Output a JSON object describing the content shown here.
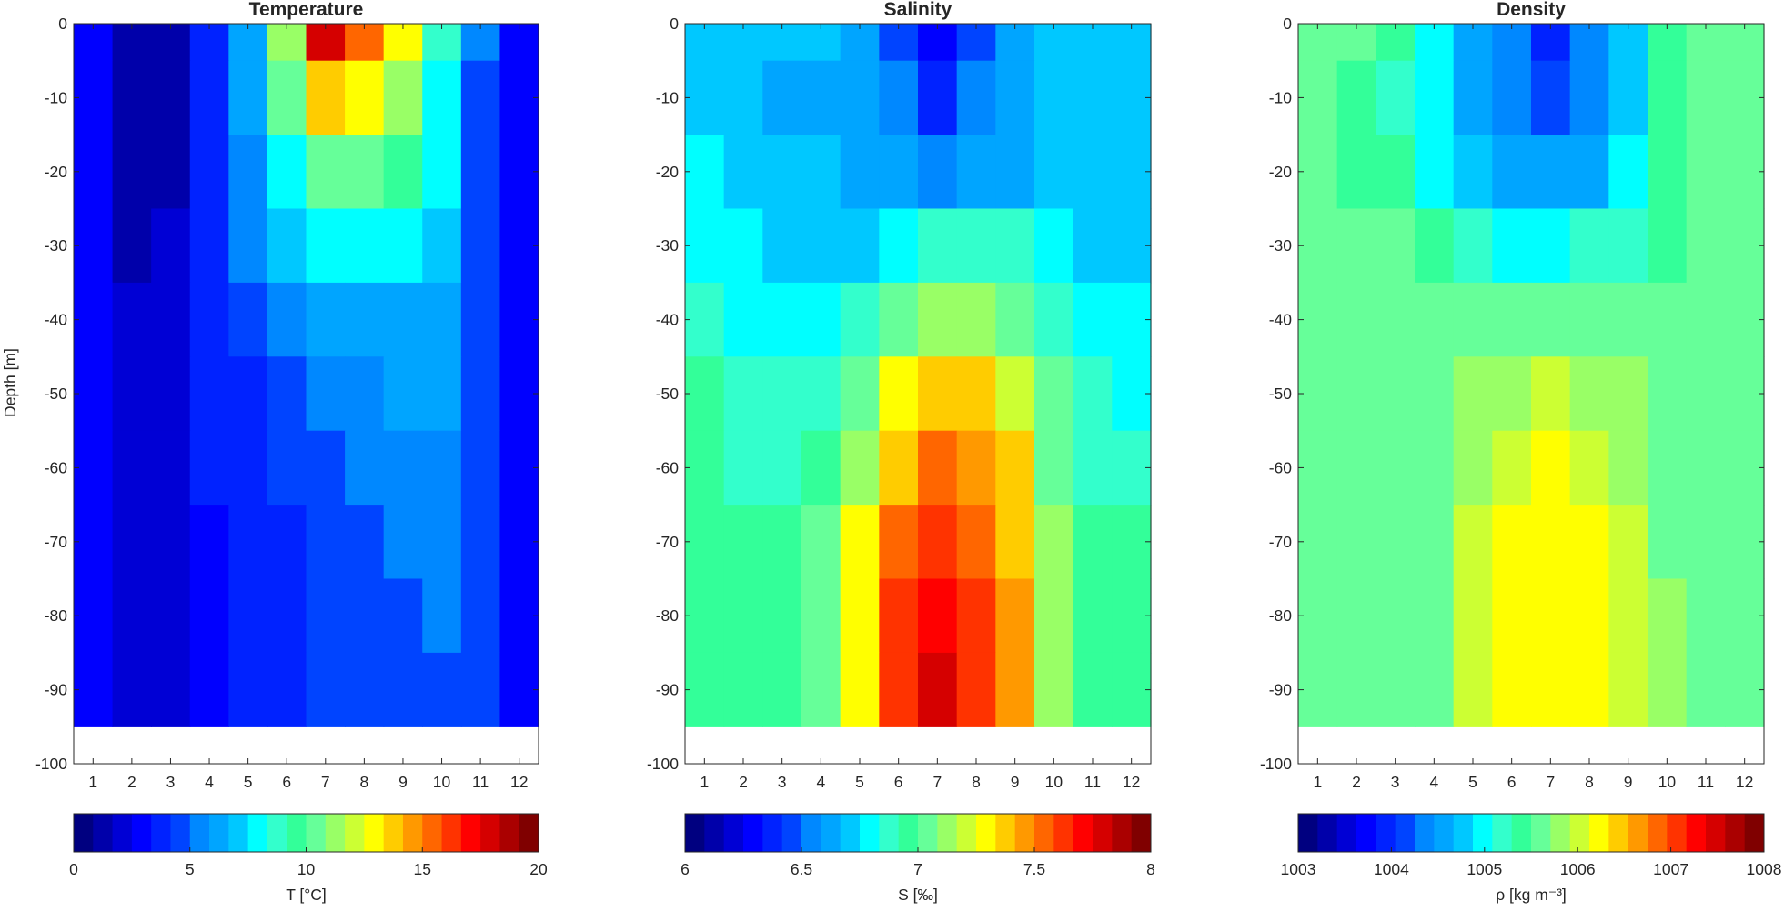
{
  "figure": {
    "ylabel": "Depth [m]"
  },
  "colormap": [
    "#000080",
    "#0000aa",
    "#0000d5",
    "#0000ff",
    "#0022ff",
    "#0044ff",
    "#0088ff",
    "#00a5ff",
    "#00c8ff",
    "#00ffff",
    "#33ffcc",
    "#33ff99",
    "#66ff99",
    "#99ff66",
    "#ccff33",
    "#ffff00",
    "#ffcc00",
    "#ff9900",
    "#ff6600",
    "#ff3300",
    "#ff0000",
    "#d50000",
    "#aa0000",
    "#800000"
  ],
  "chart_data": [
    {
      "type": "heatmap",
      "title": "Temperature",
      "colorbar_label": "T [°C]",
      "clim": [
        0,
        20
      ],
      "colorbar_ticks": [
        "0",
        "5",
        "10",
        "15",
        "20"
      ],
      "x": [
        1,
        2,
        3,
        4,
        5,
        6,
        7,
        8,
        9,
        10,
        11,
        12
      ],
      "y": [
        0,
        -10,
        -20,
        -30,
        -40,
        -50,
        -60,
        -70,
        -80,
        -90
      ],
      "xlim": [
        0.5,
        12.5
      ],
      "ylim": [
        -100,
        0
      ],
      "data_bottom": -95,
      "xticks": [
        "1",
        "2",
        "3",
        "4",
        "5",
        "6",
        "7",
        "8",
        "9",
        "10",
        "11",
        "12"
      ],
      "yticks": [
        "0",
        "-10",
        "-20",
        "-30",
        "-40",
        "-50",
        "-60",
        "-70",
        "-80",
        "-90",
        "-100"
      ],
      "values": [
        [
          3.0,
          1.0,
          1.5,
          3.5,
          6.5,
          11.5,
          17.5,
          15.0,
          13.0,
          9.0,
          5.0,
          3.0
        ],
        [
          3.0,
          1.0,
          1.5,
          3.5,
          6.0,
          10.0,
          14.0,
          12.5,
          11.5,
          8.0,
          4.5,
          3.0
        ],
        [
          3.0,
          1.0,
          1.5,
          3.5,
          5.5,
          8.0,
          10.5,
          10.5,
          9.5,
          7.5,
          4.5,
          3.0
        ],
        [
          3.0,
          1.0,
          2.0,
          3.5,
          5.0,
          7.0,
          8.0,
          8.0,
          7.5,
          7.0,
          4.5,
          3.0
        ],
        [
          3.0,
          2.0,
          2.0,
          3.5,
          4.5,
          5.5,
          6.0,
          6.5,
          6.5,
          6.5,
          4.5,
          3.0
        ],
        [
          3.0,
          2.0,
          2.0,
          3.5,
          4.0,
          4.5,
          5.0,
          5.5,
          6.0,
          6.0,
          4.5,
          3.0
        ],
        [
          3.0,
          2.0,
          2.0,
          3.5,
          4.0,
          4.5,
          4.5,
          5.0,
          5.0,
          5.5,
          4.5,
          3.0
        ],
        [
          3.0,
          2.0,
          2.0,
          3.0,
          4.0,
          4.0,
          4.5,
          4.5,
          5.0,
          5.0,
          4.5,
          3.0
        ],
        [
          3.0,
          2.0,
          2.0,
          3.0,
          4.0,
          4.0,
          4.5,
          4.5,
          4.5,
          5.0,
          4.5,
          3.0
        ],
        [
          3.0,
          2.0,
          2.0,
          3.0,
          4.0,
          4.0,
          4.5,
          4.5,
          4.5,
          4.5,
          4.5,
          3.0
        ]
      ]
    },
    {
      "type": "heatmap",
      "title": "Salinity",
      "colorbar_label": "S [‰]",
      "clim": [
        6,
        8
      ],
      "colorbar_ticks": [
        "6",
        "6.5",
        "7",
        "7.5",
        "8"
      ],
      "x": [
        1,
        2,
        3,
        4,
        5,
        6,
        7,
        8,
        9,
        10,
        11,
        12
      ],
      "y": [
        0,
        -10,
        -20,
        -30,
        -40,
        -50,
        -60,
        -70,
        -80,
        -90
      ],
      "xlim": [
        0.5,
        12.5
      ],
      "ylim": [
        -100,
        0
      ],
      "data_bottom": -95,
      "xticks": [
        "1",
        "2",
        "3",
        "4",
        "5",
        "6",
        "7",
        "8",
        "9",
        "10",
        "11",
        "12"
      ],
      "yticks": [
        "0",
        "-10",
        "-20",
        "-30",
        "-40",
        "-50",
        "-60",
        "-70",
        "-80",
        "-90",
        "-100"
      ],
      "values": [
        [
          6.72,
          6.72,
          6.72,
          6.72,
          6.6,
          6.45,
          6.3,
          6.45,
          6.65,
          6.72,
          6.72,
          6.72
        ],
        [
          6.72,
          6.72,
          6.62,
          6.62,
          6.6,
          6.5,
          6.4,
          6.5,
          6.6,
          6.72,
          6.72,
          6.72
        ],
        [
          6.75,
          6.72,
          6.72,
          6.7,
          6.65,
          6.6,
          6.55,
          6.6,
          6.65,
          6.72,
          6.72,
          6.72
        ],
        [
          6.8,
          6.78,
          6.72,
          6.72,
          6.72,
          6.8,
          6.85,
          6.9,
          6.85,
          6.75,
          6.72,
          6.72
        ],
        [
          6.85,
          6.8,
          6.8,
          6.78,
          6.9,
          7.0,
          7.1,
          7.15,
          7.05,
          6.85,
          6.8,
          6.78
        ],
        [
          6.92,
          6.85,
          6.85,
          6.85,
          7.05,
          7.25,
          7.35,
          7.35,
          7.2,
          7.0,
          6.85,
          6.8
        ],
        [
          6.92,
          6.9,
          6.88,
          6.95,
          7.15,
          7.4,
          7.5,
          7.45,
          7.35,
          7.05,
          6.9,
          6.88
        ],
        [
          6.95,
          6.95,
          6.95,
          7.0,
          7.25,
          7.55,
          7.65,
          7.55,
          7.4,
          7.1,
          6.95,
          6.92
        ],
        [
          6.95,
          6.95,
          6.95,
          7.05,
          7.3,
          7.6,
          7.7,
          7.6,
          7.45,
          7.15,
          6.95,
          6.92
        ],
        [
          6.95,
          6.95,
          6.95,
          7.05,
          7.3,
          7.6,
          7.75,
          7.6,
          7.45,
          7.15,
          6.95,
          6.92
        ]
      ]
    },
    {
      "type": "heatmap",
      "title": "Density",
      "colorbar_label": "ρ [kg m⁻³]",
      "clim": [
        1003,
        1008
      ],
      "colorbar_ticks": [
        "1003",
        "1004",
        "1005",
        "1006",
        "1007",
        "1008"
      ],
      "x": [
        1,
        2,
        3,
        4,
        5,
        6,
        7,
        8,
        9,
        10,
        11,
        12
      ],
      "y": [
        0,
        -10,
        -20,
        -30,
        -40,
        -50,
        -60,
        -70,
        -80,
        -90
      ],
      "xlim": [
        0.5,
        12.5
      ],
      "ylim": [
        -100,
        0
      ],
      "data_bottom": -95,
      "xticks": [
        "1",
        "2",
        "3",
        "4",
        "5",
        "6",
        "7",
        "8",
        "9",
        "10",
        "11",
        "12"
      ],
      "yticks": [
        "0",
        "-10",
        "-20",
        "-30",
        "-40",
        "-50",
        "-60",
        "-70",
        "-80",
        "-90",
        "-100"
      ],
      "values": [
        [
          1005.5,
          1005.5,
          1005.3,
          1004.9,
          1004.6,
          1004.3,
          1003.9,
          1004.3,
          1004.8,
          1005.3,
          1005.5,
          1005.5
        ],
        [
          1005.5,
          1005.4,
          1005.1,
          1004.9,
          1004.6,
          1004.4,
          1004.1,
          1004.4,
          1004.8,
          1005.3,
          1005.5,
          1005.5
        ],
        [
          1005.5,
          1005.4,
          1005.3,
          1005.0,
          1004.8,
          1004.6,
          1004.5,
          1004.6,
          1004.9,
          1005.3,
          1005.5,
          1005.5
        ],
        [
          1005.5,
          1005.5,
          1005.5,
          1005.4,
          1005.2,
          1005.0,
          1005.0,
          1005.1,
          1005.2,
          1005.4,
          1005.5,
          1005.5
        ],
        [
          1005.5,
          1005.5,
          1005.5,
          1005.5,
          1005.6,
          1005.7,
          1005.7,
          1005.7,
          1005.6,
          1005.5,
          1005.5,
          1005.5
        ],
        [
          1005.5,
          1005.5,
          1005.5,
          1005.6,
          1005.8,
          1005.9,
          1006.0,
          1005.9,
          1005.8,
          1005.6,
          1005.5,
          1005.5
        ],
        [
          1005.5,
          1005.5,
          1005.5,
          1005.7,
          1005.9,
          1006.1,
          1006.2,
          1006.1,
          1005.9,
          1005.7,
          1005.5,
          1005.5
        ],
        [
          1005.5,
          1005.5,
          1005.5,
          1005.7,
          1006.0,
          1006.2,
          1006.3,
          1006.2,
          1006.0,
          1005.7,
          1005.6,
          1005.5
        ],
        [
          1005.5,
          1005.5,
          1005.5,
          1005.7,
          1006.0,
          1006.2,
          1006.3,
          1006.3,
          1006.0,
          1005.8,
          1005.6,
          1005.5
        ],
        [
          1005.5,
          1005.5,
          1005.5,
          1005.7,
          1006.0,
          1006.2,
          1006.3,
          1006.3,
          1006.0,
          1005.8,
          1005.6,
          1005.5
        ]
      ]
    }
  ]
}
